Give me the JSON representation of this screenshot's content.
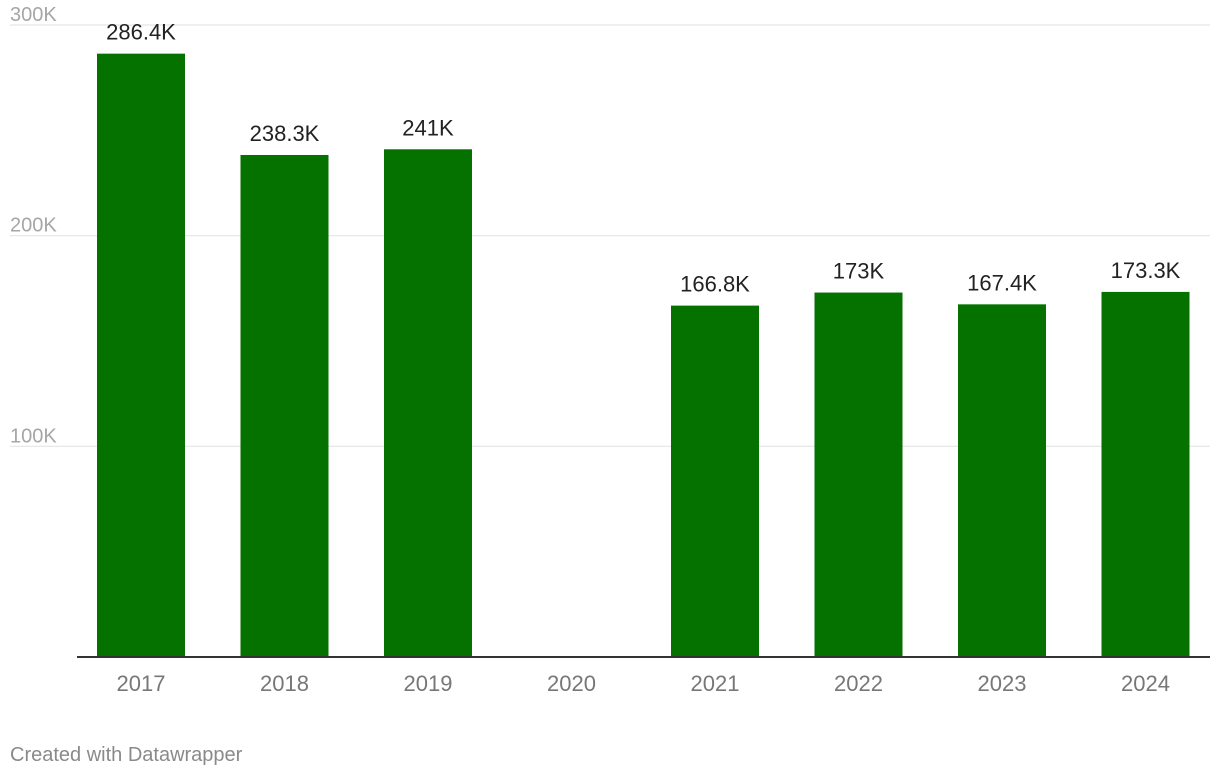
{
  "chart_data": {
    "type": "bar",
    "categories": [
      "2017",
      "2018",
      "2019",
      "2020",
      "2021",
      "2022",
      "2023",
      "2024"
    ],
    "values": [
      286.4,
      238.3,
      241.0,
      null,
      166.8,
      173.0,
      167.4,
      173.3
    ],
    "value_labels": [
      "286.4K",
      "238.3K",
      "241K",
      "",
      "166.8K",
      "173K",
      "167.4K",
      "173.3K"
    ],
    "units": "thousands",
    "title": "",
    "xlabel": "",
    "ylabel": "",
    "ylim": [
      0,
      300
    ],
    "yticks": [
      100,
      200,
      300
    ],
    "ytick_labels": [
      "100K",
      "200K",
      "300K"
    ],
    "grid": true,
    "legend": "none",
    "colors": {
      "bar": "#057200",
      "grid": "#e5e5e5",
      "axis": "#333333",
      "tick_text": "#a6a6a6",
      "category_text": "#777777",
      "value_text": "#222222"
    }
  },
  "footer": {
    "credit": "Created with Datawrapper"
  }
}
